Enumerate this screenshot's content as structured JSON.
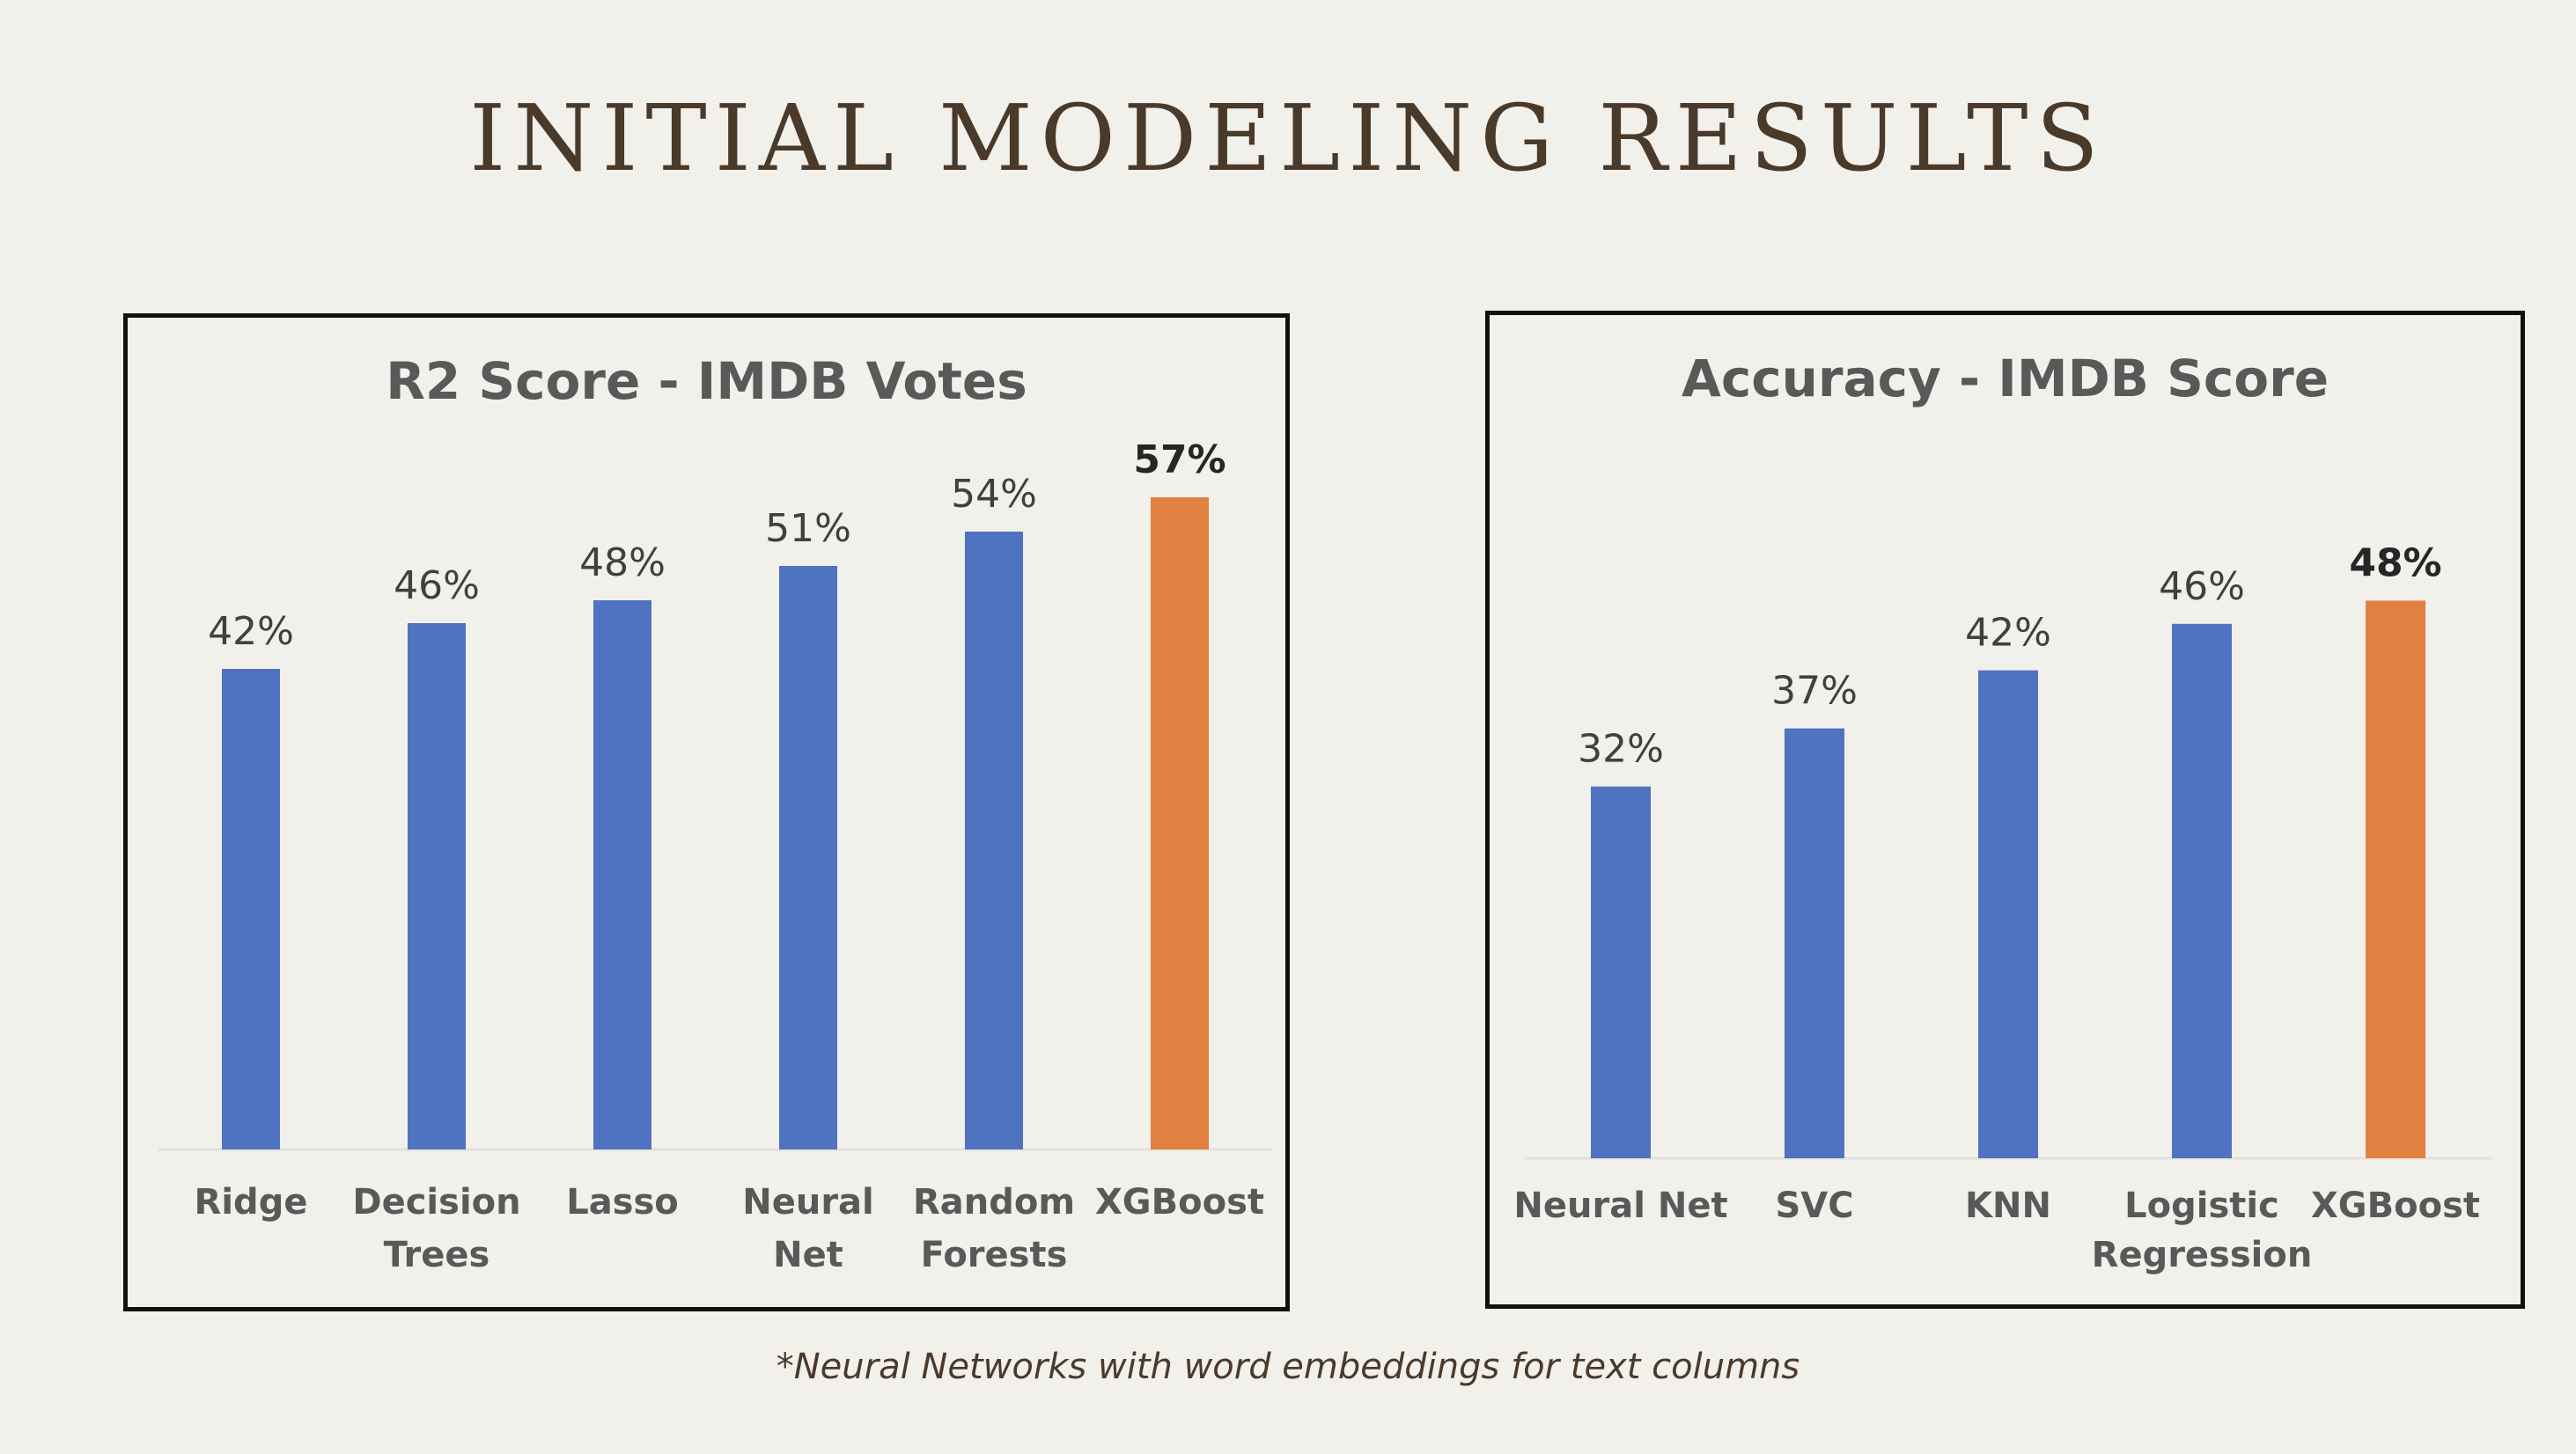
{
  "slide_title": "INITIAL MODELING RESULTS",
  "footnote": "*Neural Networks with word embeddings for text columns",
  "colors": {
    "background": "#f2f0eb",
    "bar_default": "#4f73c0",
    "bar_highlight": "#e08142",
    "title_text": "#4a3a2a"
  },
  "chart_data": [
    {
      "type": "bar",
      "title": "R2 Score - IMDB Votes",
      "xlabel": "",
      "ylabel": "",
      "categories": [
        "Ridge",
        "Decision Trees",
        "Lasso",
        "Neural Net",
        "Random Forests",
        "XGBoost"
      ],
      "category_lines": [
        [
          "Ridge"
        ],
        [
          "Decision",
          "Trees"
        ],
        [
          "Lasso"
        ],
        [
          "Neural",
          "Net"
        ],
        [
          "Random",
          "Forests"
        ],
        [
          "XGBoost"
        ]
      ],
      "values": [
        42,
        46,
        48,
        51,
        54,
        57
      ],
      "value_labels": [
        "42%",
        "46%",
        "48%",
        "51%",
        "54%",
        "57%"
      ],
      "highlight_index": 5,
      "unit": "%",
      "ylim": [
        0,
        57
      ],
      "grid": false,
      "legend": "none"
    },
    {
      "type": "bar",
      "title": "Accuracy - IMDB Score",
      "xlabel": "",
      "ylabel": "",
      "categories": [
        "Neural Net",
        "SVC",
        "KNN",
        "Logistic Regression",
        "XGBoost"
      ],
      "category_lines": [
        [
          "Neural Net"
        ],
        [
          "SVC"
        ],
        [
          "KNN"
        ],
        [
          "Logistic",
          "Regression"
        ],
        [
          "XGBoost"
        ]
      ],
      "values": [
        32,
        37,
        42,
        46,
        48
      ],
      "value_labels": [
        "32%",
        "37%",
        "42%",
        "46%",
        "48%"
      ],
      "highlight_index": 4,
      "unit": "%",
      "ylim": [
        0,
        48
      ],
      "grid": false,
      "legend": "none"
    }
  ]
}
